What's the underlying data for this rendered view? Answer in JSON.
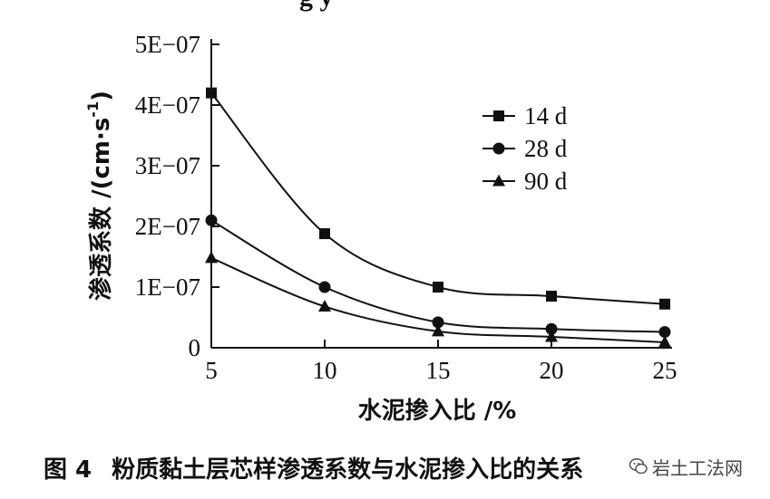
{
  "header_fragment": "g               y",
  "chart_data": {
    "type": "line",
    "xlabel": "水泥掺入比 /%",
    "ylabel": "渗透系数 /(cm·s",
    "ylabel_sup": "-1",
    "ylabel_close": ")",
    "xlim": [
      5,
      25
    ],
    "ylim": [
      0,
      5e-07
    ],
    "x_ticks": [
      "5",
      "10",
      "15",
      "20",
      "25"
    ],
    "y_ticks": [
      "0",
      "1E−07",
      "2E−07",
      "3E−07",
      "4E−07",
      "5E−07"
    ],
    "legend_position": "top-right",
    "series": [
      {
        "name": "14 d",
        "marker": "square",
        "x": [
          5,
          10,
          15,
          20,
          25
        ],
        "y": [
          4.2e-07,
          1.88e-07,
          1e-07,
          8.5e-08,
          7.2e-08
        ]
      },
      {
        "name": "28 d",
        "marker": "circle",
        "x": [
          5,
          10,
          15,
          20,
          25
        ],
        "y": [
          2.1e-07,
          1e-07,
          4.2e-08,
          3.1e-08,
          2.6e-08
        ]
      },
      {
        "name": "90 d",
        "marker": "triangle",
        "x": [
          5,
          10,
          15,
          20,
          25
        ],
        "y": [
          1.48e-07,
          6.8e-08,
          2.7e-08,
          1.8e-08,
          9e-09
        ]
      }
    ]
  },
  "caption": {
    "figure_number": "图 4",
    "text": "粉质黏土层芯样渗透系数与水泥掺入比的关系"
  },
  "watermark": {
    "text": "岩土工法网",
    "icon": "wechat-icon"
  }
}
